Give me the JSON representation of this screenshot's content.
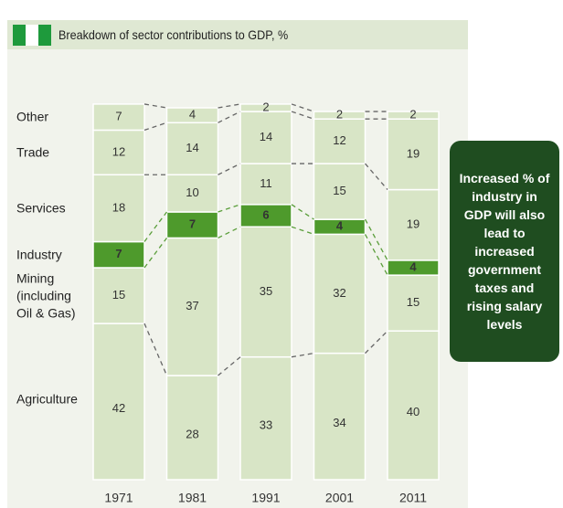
{
  "chart_data": {
    "type": "stacked_bar",
    "title": "Breakdown of sector contributions to GDP, %",
    "categories": [
      "1971",
      "1981",
      "1991",
      "2001",
      "2011"
    ],
    "series": [
      {
        "name": "Agriculture",
        "color": "#d8e5c6",
        "values": [
          42,
          28,
          33,
          34,
          40
        ]
      },
      {
        "name": "Mining (including Oil & Gas)",
        "color": "#d8e5c6",
        "values": [
          15,
          37,
          35,
          32,
          15
        ]
      },
      {
        "name": "Industry",
        "color": "#4e9a2c",
        "values": [
          7,
          7,
          6,
          4,
          4
        ]
      },
      {
        "name": "Services",
        "color": "#d8e5c6",
        "values": [
          18,
          10,
          11,
          15,
          19
        ]
      },
      {
        "name": "Trade",
        "color": "#d8e5c6",
        "values": [
          12,
          14,
          14,
          12,
          19
        ]
      },
      {
        "name": "Other",
        "color": "#d8e5c6",
        "values": [
          7,
          4,
          2,
          2,
          2
        ]
      }
    ],
    "ylim": [
      0,
      100
    ],
    "annotation": "Increased % of industry in GDP will also lead to increased government taxes and rising salary levels"
  }
}
